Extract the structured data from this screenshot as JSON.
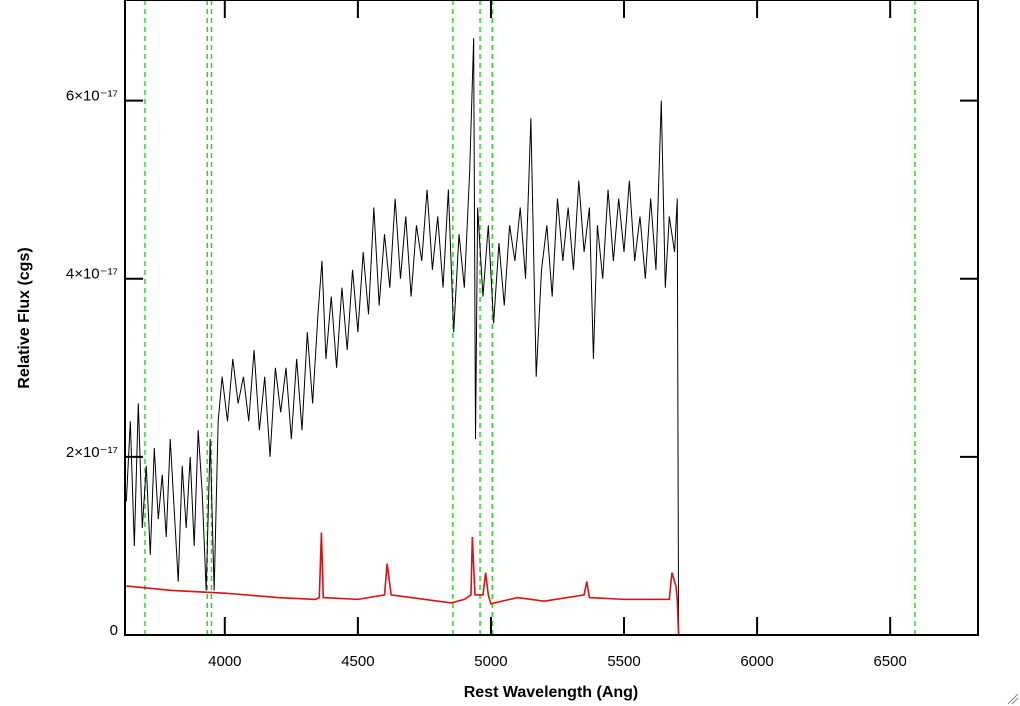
{
  "chart_data": {
    "type": "line",
    "x_label": "Rest Wavelength (Ang)",
    "y_label": "Relative Flux (cgs)",
    "xlim": [
      3625,
      6830
    ],
    "ylim": [
      0,
      7.13e-17
    ],
    "xticks": [
      4000,
      4500,
      5000,
      5500,
      6000,
      6500
    ],
    "yticks": [
      0,
      {
        "value": 2e-17,
        "label": "2×10⁻¹⁷"
      },
      {
        "value": 4e-17,
        "label": "4×10⁻¹⁷"
      },
      {
        "value": 6e-17,
        "label": "6×10⁻¹⁷"
      }
    ],
    "vlines": {
      "color": "#22dd22",
      "values": [
        3700,
        3934,
        3950,
        4857,
        4959,
        5005,
        6593
      ]
    },
    "series": [
      {
        "color": "#000000",
        "x": [
          3630,
          3645,
          3660,
          3675,
          3690,
          3705,
          3720,
          3735,
          3750,
          3765,
          3780,
          3795,
          3810,
          3825,
          3840,
          3855,
          3870,
          3885,
          3900,
          3915,
          3930,
          3945,
          3960,
          3975,
          3990,
          4010,
          4030,
          4050,
          4070,
          4090,
          4110,
          4130,
          4150,
          4170,
          4190,
          4210,
          4230,
          4250,
          4270,
          4290,
          4310,
          4330,
          4350,
          4365,
          4380,
          4400,
          4420,
          4440,
          4460,
          4480,
          4500,
          4520,
          4540,
          4560,
          4580,
          4600,
          4620,
          4640,
          4660,
          4680,
          4700,
          4720,
          4740,
          4760,
          4780,
          4800,
          4820,
          4840,
          4860,
          4880,
          4900,
          4920,
          4935,
          4942,
          4950,
          4970,
          4990,
          5010,
          5030,
          5050,
          5070,
          5090,
          5110,
          5130,
          5150,
          5170,
          5190,
          5210,
          5230,
          5250,
          5270,
          5290,
          5310,
          5330,
          5350,
          5370,
          5385,
          5400,
          5420,
          5440,
          5460,
          5480,
          5500,
          5520,
          5540,
          5560,
          5580,
          5600,
          5620,
          5640,
          5655,
          5670,
          5690,
          5700,
          5705,
          6830
        ],
        "values": [
          1.5e-17,
          2.4e-17,
          1e-17,
          2.6e-17,
          1.2e-17,
          1.9e-17,
          9e-18,
          2.1e-17,
          1.3e-17,
          1.8e-17,
          1.1e-17,
          2.2e-17,
          1.4e-17,
          6e-18,
          1.9e-17,
          1.2e-17,
          2e-17,
          1e-17,
          2.3e-17,
          1.6e-17,
          5e-18,
          2.2e-17,
          5e-18,
          2.4e-17,
          2.9e-17,
          2.4e-17,
          3.1e-17,
          2.6e-17,
          2.9e-17,
          2.4e-17,
          3.2e-17,
          2.3e-17,
          2.9e-17,
          2e-17,
          3e-17,
          2.5e-17,
          3e-17,
          2.2e-17,
          3.1e-17,
          2.3e-17,
          3.4e-17,
          2.6e-17,
          3.6e-17,
          4.2e-17,
          3.1e-17,
          3.8e-17,
          3e-17,
          3.9e-17,
          3.2e-17,
          4.1e-17,
          3.4e-17,
          4.3e-17,
          3.6e-17,
          4.8e-17,
          3.7e-17,
          4.5e-17,
          3.9e-17,
          4.9e-17,
          4e-17,
          4.7e-17,
          3.8e-17,
          4.6e-17,
          4.2e-17,
          5e-17,
          4.1e-17,
          4.7e-17,
          3.9e-17,
          5e-17,
          3.4e-17,
          4.5e-17,
          3.9e-17,
          5.2e-17,
          6.7e-17,
          2.2e-17,
          4.8e-17,
          3.8e-17,
          4.6e-17,
          3.5e-17,
          4.4e-17,
          3.7e-17,
          4.6e-17,
          4.2e-17,
          4.8e-17,
          4e-17,
          5.8e-17,
          2.9e-17,
          4.1e-17,
          4.6e-17,
          3.8e-17,
          4.9e-17,
          4.2e-17,
          4.8e-17,
          4.1e-17,
          5.1e-17,
          4.3e-17,
          4.8e-17,
          3.1e-17,
          4.6e-17,
          4e-17,
          5e-17,
          4.2e-17,
          4.9e-17,
          4.3e-17,
          5.1e-17,
          4.2e-17,
          4.7e-17,
          4e-17,
          4.9e-17,
          4.1e-17,
          6e-17,
          3.9e-17,
          4.7e-17,
          4.3e-17,
          4.9e-17,
          0,
          0
        ]
      },
      {
        "color": "#dd1111",
        "x": [
          3630,
          3800,
          4000,
          4200,
          4340,
          4355,
          4363,
          4370,
          4500,
          4600,
          4610,
          4625,
          4700,
          4850,
          4900,
          4925,
          4930,
          4940,
          4970,
          4980,
          4990,
          5000,
          5100,
          5200,
          5350,
          5360,
          5370,
          5500,
          5600,
          5670,
          5680,
          5695,
          5700,
          5705,
          6830
        ],
        "values": [
          5.5e-18,
          5e-18,
          4.7e-18,
          4.2e-18,
          4e-18,
          4.2e-18,
          1.15e-17,
          4.2e-18,
          4e-18,
          4.5e-18,
          8e-18,
          4.5e-18,
          4.2e-18,
          3.6e-18,
          4e-18,
          4.5e-18,
          1.1e-17,
          4.5e-18,
          4.5e-18,
          7e-18,
          4.5e-18,
          3.5e-18,
          4.2e-18,
          3.8e-18,
          4.5e-18,
          6e-18,
          4.2e-18,
          4e-18,
          4e-18,
          4e-18,
          7e-18,
          5.5e-18,
          4e-18,
          0,
          0
        ]
      }
    ]
  }
}
